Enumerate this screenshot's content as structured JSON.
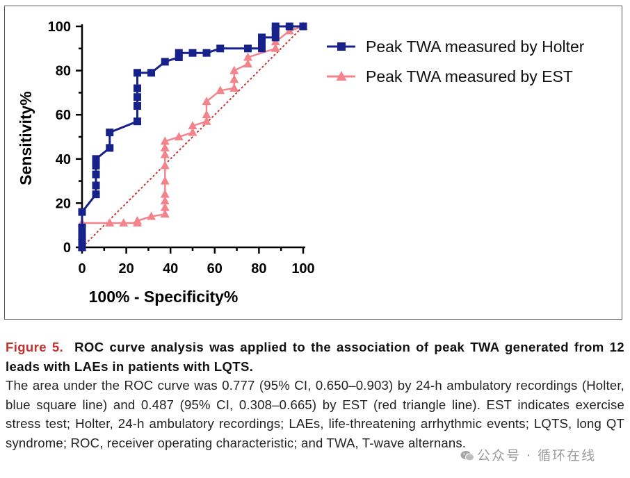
{
  "chart_data": {
    "type": "line",
    "xlabel": "100% - Specificity%",
    "ylabel": "Sensitivity%",
    "xlim": [
      0,
      100
    ],
    "ylim": [
      0,
      100
    ],
    "x_ticks": [
      "0",
      "20",
      "40",
      "60",
      "80",
      "100"
    ],
    "y_ticks": [
      "0",
      "20",
      "40",
      "60",
      "80",
      "100"
    ],
    "legend_position": "top-right",
    "reference_line": {
      "style": "dotted",
      "color": "#d0312d",
      "from": [
        0,
        0
      ],
      "to": [
        100,
        100
      ]
    },
    "series": [
      {
        "name": "Peak TWA measured by Holter",
        "color": "#16228a",
        "marker": "square",
        "x": [
          0,
          0,
          0,
          0,
          0,
          6.3,
          6.3,
          6.3,
          6.3,
          6.3,
          12.5,
          12.5,
          25,
          25,
          25,
          25,
          25,
          31.3,
          37.5,
          43.8,
          43.8,
          50,
          56.3,
          62.5,
          75,
          81.3,
          81.3,
          81.3,
          87.5,
          87.5,
          87.5,
          93.8,
          100
        ],
        "y": [
          0,
          3,
          6,
          9,
          16,
          24,
          28,
          33,
          37,
          40,
          45,
          52,
          57,
          64,
          68,
          72,
          79,
          79,
          84,
          86,
          88,
          88,
          88,
          90,
          90,
          90,
          93,
          95,
          95,
          98,
          100,
          100,
          100
        ]
      },
      {
        "name": "Peak TWA measured by EST",
        "color": "#f4848c",
        "marker": "triangle",
        "x": [
          0,
          0,
          0,
          12.5,
          18.8,
          25,
          25,
          31.3,
          37.5,
          37.5,
          37.5,
          37.5,
          37.5,
          37.5,
          37.5,
          37.5,
          37.5,
          43.8,
          50,
          50,
          56.3,
          56.3,
          56.3,
          62.5,
          68.8,
          68.8,
          68.8,
          75,
          75,
          87.5,
          87.5,
          93.8,
          100
        ],
        "y": [
          0,
          5,
          11,
          11,
          11,
          11,
          12,
          14,
          15,
          18,
          21,
          24,
          30,
          37,
          42,
          45,
          48,
          50,
          52,
          55,
          57,
          60,
          66,
          71,
          72,
          76,
          80,
          83,
          86,
          90,
          93,
          98,
          100
        ]
      }
    ]
  },
  "caption": {
    "figure_label": "Figure 5.",
    "title": "ROC curve analysis was applied to the association of peak TWA generated from 12 leads with LAEs in patients with LQTS.",
    "body": "The area under the ROC curve was 0.777 (95% CI, 0.650–0.903) by 24-h ambulatory recordings (Holter, blue square line) and 0.487 (95% CI, 0.308–0.665) by EST (red triangle line). EST indicates exercise stress test; Holter, 24-h ambulatory recordings; LAEs, life-threatening arrhythmic events; LQTS, long QT syndrome; ROC, receiver operating characteristic; and TWA, T-wave alternans."
  },
  "watermark": {
    "text": "公众号 · 循环在线",
    "icon": "wechat-icon"
  }
}
